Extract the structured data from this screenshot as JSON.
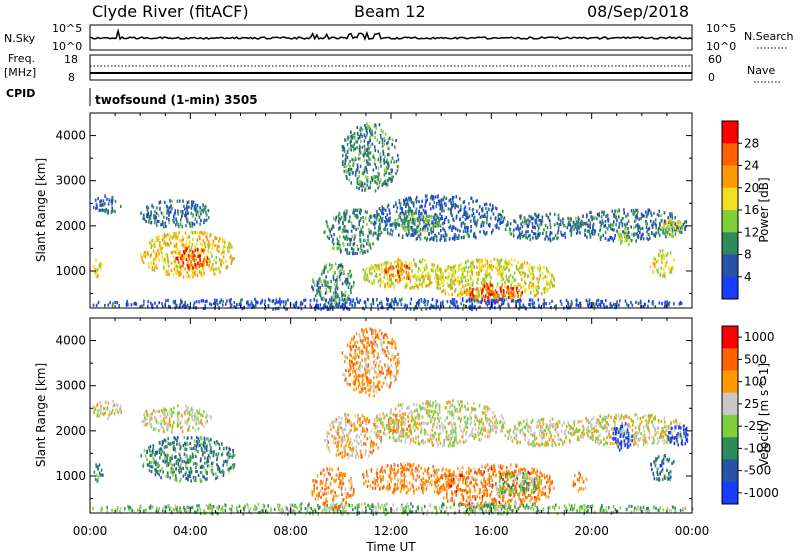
{
  "header": {
    "station": "Clyde River (fitACF)",
    "beam": "Beam 12",
    "date": "08/Sep/2018"
  },
  "top_strips": {
    "noise_left_label": "N.Sky",
    "noise_left_ticks": [
      "10^5",
      "10^0"
    ],
    "noise_right_ticks": [
      "10^5",
      "10^0"
    ],
    "noise_right_label": "N.Search",
    "freq_left_label_1": "Freq.",
    "freq_left_label_2": "[MHz]",
    "freq_left_ticks": [
      "18",
      "8"
    ],
    "freq_right_ticks": [
      "60",
      "0"
    ],
    "freq_right_label": "Nave",
    "cpid_label": "CPID",
    "cpid_text": "twofsound (1-min) 3505"
  },
  "chart_data": [
    {
      "type": "heatmap",
      "title": "Power",
      "ylabel": "Slant Range [km]",
      "xlabel": "Time UT",
      "x_ticks": [
        "00:00",
        "04:00",
        "08:00",
        "12:00",
        "16:00",
        "20:00",
        "00:00"
      ],
      "xlim_hours": [
        0,
        24
      ],
      "y_ticks": [
        1000,
        2000,
        3000,
        4000
      ],
      "ylim": [
        180,
        4500
      ],
      "colorbar_label": "Power [dB]",
      "colorbar_ticks": [
        "4",
        "8",
        "12",
        "16",
        "20",
        "24",
        "28"
      ],
      "colorbar_colors": [
        "#1a3cff",
        "#2a52a8",
        "#2e8c5a",
        "#7fcf3a",
        "#f0e020",
        "#ff9a00",
        "#ff6000",
        "#ff0000"
      ],
      "regions": [
        {
          "t": [
            0.1,
            1.2
          ],
          "r": [
            2300,
            2700
          ],
          "v": 0.2
        },
        {
          "t": [
            0.1,
            0.5
          ],
          "r": [
            900,
            1300
          ],
          "v": 0.55
        },
        {
          "t": [
            2.0,
            4.8
          ],
          "r": [
            2000,
            2600
          ],
          "v": 0.25
        },
        {
          "t": [
            2.0,
            5.8
          ],
          "r": [
            900,
            1900
          ],
          "v": 0.6
        },
        {
          "t": [
            3.3,
            4.7
          ],
          "r": [
            1050,
            1550
          ],
          "v": 0.85
        },
        {
          "t": [
            9.3,
            11.6
          ],
          "r": [
            1400,
            2400
          ],
          "v": 0.3
        },
        {
          "t": [
            10.8,
            14.5
          ],
          "r": [
            650,
            1300
          ],
          "v": 0.55
        },
        {
          "t": [
            11.7,
            12.8
          ],
          "r": [
            800,
            1200
          ],
          "v": 0.8
        },
        {
          "t": [
            11.3,
            16.5
          ],
          "r": [
            1700,
            2700
          ],
          "v": 0.2
        },
        {
          "t": [
            12.0,
            14.0
          ],
          "r": [
            1900,
            2300
          ],
          "v": 0.4
        },
        {
          "t": [
            13.7,
            18.5
          ],
          "r": [
            350,
            1300
          ],
          "v": 0.55
        },
        {
          "t": [
            14.8,
            17.2
          ],
          "r": [
            350,
            750
          ],
          "v": 0.85
        },
        {
          "t": [
            16.5,
            19.5
          ],
          "r": [
            1700,
            2300
          ],
          "v": 0.25
        },
        {
          "t": [
            19.0,
            23.8
          ],
          "r": [
            1700,
            2400
          ],
          "v": 0.25
        },
        {
          "t": [
            21.0,
            21.6
          ],
          "r": [
            1600,
            2000
          ],
          "v": 0.45
        },
        {
          "t": [
            22.3,
            23.3
          ],
          "r": [
            900,
            1500
          ],
          "v": 0.55
        },
        {
          "t": [
            22.7,
            23.6
          ],
          "r": [
            1800,
            2200
          ],
          "v": 0.5
        },
        {
          "t": [
            0.0,
            24.0
          ],
          "r": [
            180,
            420
          ],
          "v": 0.15
        },
        {
          "t": [
            8.8,
            10.5
          ],
          "r": [
            300,
            1200
          ],
          "v": 0.3
        },
        {
          "t": [
            10.0,
            12.3
          ],
          "r": [
            2800,
            4300
          ],
          "v": 0.3
        }
      ]
    },
    {
      "type": "heatmap",
      "title": "Velocity",
      "ylabel": "Slant Range [km]",
      "xlabel": "Time UT",
      "x_ticks": [
        "00:00",
        "04:00",
        "08:00",
        "12:00",
        "16:00",
        "20:00",
        "00:00"
      ],
      "xlim_hours": [
        0,
        24
      ],
      "y_ticks": [
        1000,
        2000,
        3000,
        4000
      ],
      "ylim": [
        180,
        4500
      ],
      "colorbar_label": "Velocity [m s^-1]",
      "colorbar_ticks": [
        "1000",
        "500",
        "100",
        "25",
        "-25",
        "-100",
        "-500",
        "-1000"
      ],
      "colorbar_colors": [
        "#1a3cff",
        "#2a52a8",
        "#2e8c5a",
        "#7fcf3a",
        "#c8c8c8",
        "#ff9a00",
        "#ff6000",
        "#ff0000"
      ],
      "regions": [
        {
          "t": [
            0.1,
            1.3
          ],
          "r": [
            2300,
            2700
          ],
          "v": 0.55
        },
        {
          "t": [
            0.1,
            0.5
          ],
          "r": [
            900,
            1300
          ],
          "v": 0.3
        },
        {
          "t": [
            2.0,
            4.8
          ],
          "r": [
            2000,
            2600
          ],
          "v": 0.55
        },
        {
          "t": [
            2.0,
            5.8
          ],
          "r": [
            900,
            1900
          ],
          "v": 0.3
        },
        {
          "t": [
            9.3,
            11.6
          ],
          "r": [
            1400,
            2400
          ],
          "v": 0.65
        },
        {
          "t": [
            11.7,
            12.9
          ],
          "r": [
            1950,
            2400
          ],
          "v": 0.72
        },
        {
          "t": [
            10.8,
            14.5
          ],
          "r": [
            650,
            1300
          ],
          "v": 0.72
        },
        {
          "t": [
            11.3,
            16.5
          ],
          "r": [
            1700,
            2700
          ],
          "v": 0.55
        },
        {
          "t": [
            13.7,
            18.5
          ],
          "r": [
            300,
            1300
          ],
          "v": 0.75
        },
        {
          "t": [
            16.0,
            18.0
          ],
          "r": [
            600,
            1100
          ],
          "v": 0.42
        },
        {
          "t": [
            16.5,
            19.5
          ],
          "r": [
            1700,
            2300
          ],
          "v": 0.55
        },
        {
          "t": [
            19.0,
            23.8
          ],
          "r": [
            1700,
            2400
          ],
          "v": 0.55
        },
        {
          "t": [
            20.8,
            21.6
          ],
          "r": [
            1600,
            2200
          ],
          "v": 0.05
        },
        {
          "t": [
            22.3,
            23.3
          ],
          "r": [
            900,
            1500
          ],
          "v": 0.25
        },
        {
          "t": [
            23.0,
            23.9
          ],
          "r": [
            1700,
            2200
          ],
          "v": 0.08
        },
        {
          "t": [
            19.2,
            19.8
          ],
          "r": [
            700,
            1100
          ],
          "v": 0.72
        },
        {
          "t": [
            0.0,
            24.0
          ],
          "r": [
            180,
            420
          ],
          "v": 0.42
        },
        {
          "t": [
            8.8,
            10.5
          ],
          "r": [
            300,
            1200
          ],
          "v": 0.72
        },
        {
          "t": [
            10.0,
            12.3
          ],
          "r": [
            2800,
            4300
          ],
          "v": 0.7
        }
      ]
    }
  ]
}
